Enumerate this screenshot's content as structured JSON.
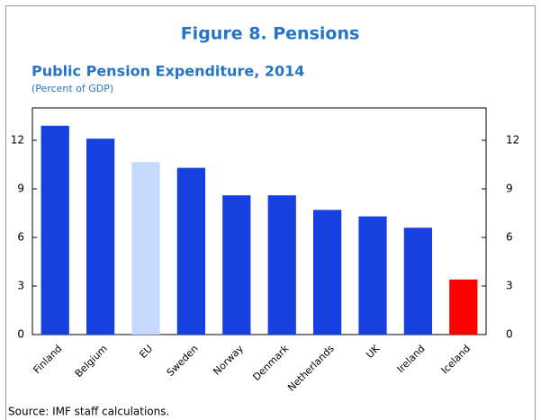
{
  "chart_data": {
    "type": "bar",
    "title": "Figure 8. Pensions",
    "subtitle": "Public Pension Expenditure, 2014",
    "unit_note": "(Percent of GDP)",
    "source": "Source: IMF staff calculations.",
    "categories": [
      "Finland",
      "Belgium",
      "EU",
      "Sweden",
      "Norway",
      "Denmark",
      "Netherlands",
      "UK",
      "Ireland",
      "Iceland"
    ],
    "values": [
      12.9,
      12.1,
      10.65,
      10.3,
      8.6,
      8.6,
      7.7,
      7.3,
      6.6,
      3.4
    ],
    "colors": [
      "#1740e0",
      "#1740e0",
      "#c5d8ff",
      "#1740e0",
      "#1740e0",
      "#1740e0",
      "#1740e0",
      "#1740e0",
      "#1740e0",
      "#ff0000"
    ],
    "ylim": [
      0,
      14
    ],
    "yticks": [
      0,
      3,
      6,
      9,
      12
    ],
    "y2lim": [
      0,
      14
    ],
    "y2ticks": [
      0,
      3,
      6,
      9,
      12
    ],
    "grid": false
  }
}
